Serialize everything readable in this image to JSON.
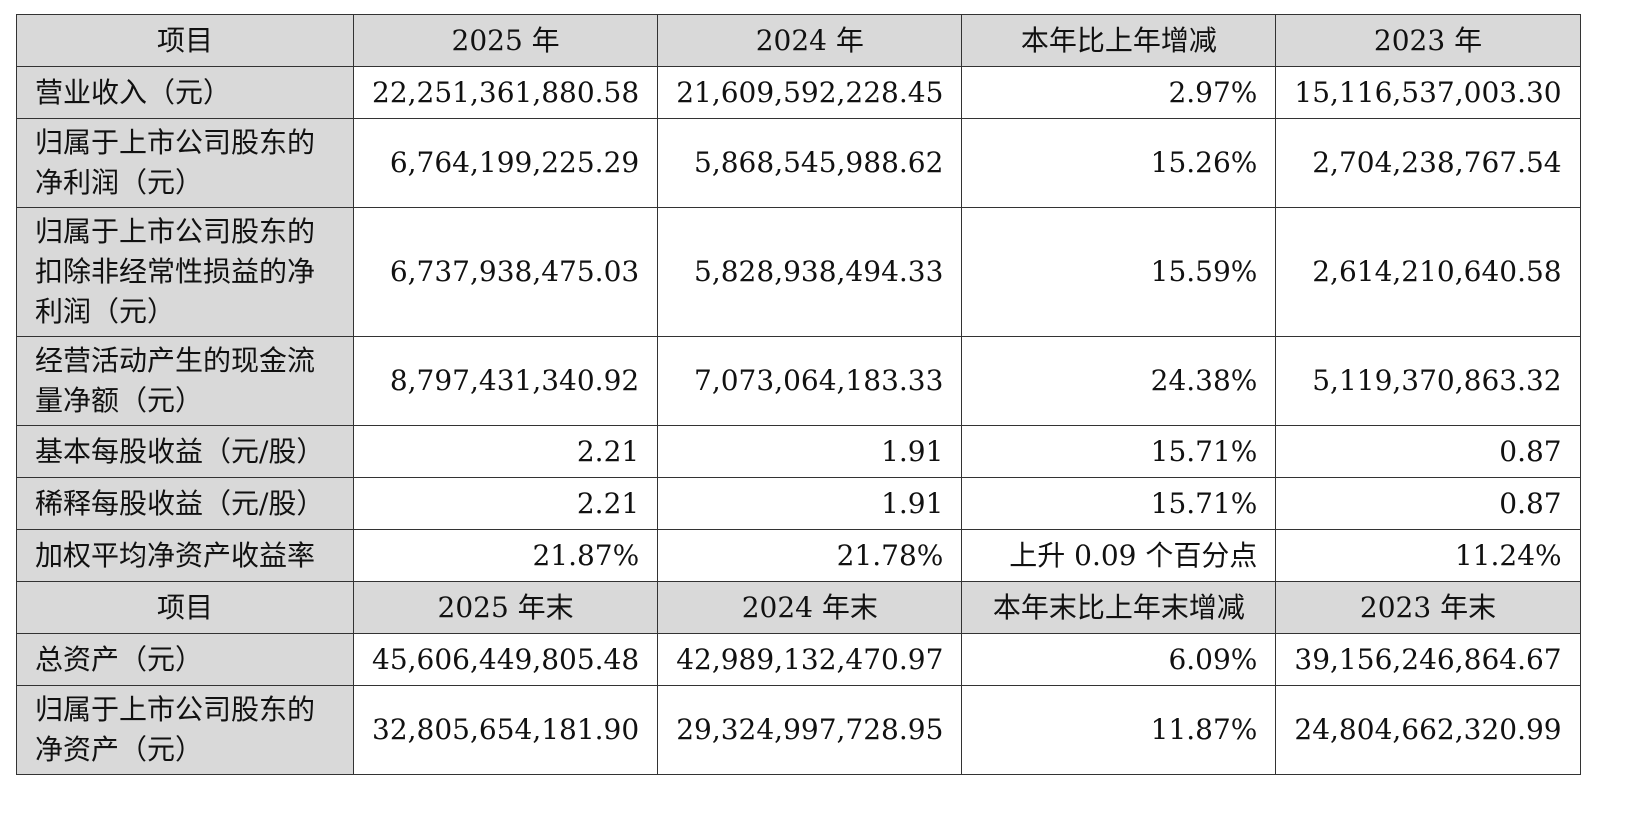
{
  "table": {
    "header1": [
      "项目",
      "2025 年",
      "2024 年",
      "本年比上年增减",
      "2023 年"
    ],
    "rows1": [
      {
        "label": [
          "营业收入（元）"
        ],
        "v2025": "22,251,361,880.58",
        "v2024": "21,609,592,228.45",
        "change": "2.97%",
        "v2023": "15,116,537,003.30"
      },
      {
        "label": [
          "归属于上市公司股东的",
          "净利润（元）"
        ],
        "v2025": "6,764,199,225.29",
        "v2024": "5,868,545,988.62",
        "change": "15.26%",
        "v2023": "2,704,238,767.54"
      },
      {
        "label": [
          "归属于上市公司股东的",
          "扣除非经常性损益的净",
          "利润（元）"
        ],
        "v2025": "6,737,938,475.03",
        "v2024": "5,828,938,494.33",
        "change": "15.59%",
        "v2023": "2,614,210,640.58"
      },
      {
        "label": [
          "经营活动产生的现金流",
          "量净额（元）"
        ],
        "v2025": "8,797,431,340.92",
        "v2024": "7,073,064,183.33",
        "change": "24.38%",
        "v2023": "5,119,370,863.32"
      },
      {
        "label": [
          "基本每股收益（元/股）"
        ],
        "v2025": "2.21",
        "v2024": "1.91",
        "change": "15.71%",
        "v2023": "0.87"
      },
      {
        "label": [
          "稀释每股收益（元/股）"
        ],
        "v2025": "2.21",
        "v2024": "1.91",
        "change": "15.71%",
        "v2023": "0.87"
      },
      {
        "label": [
          "加权平均净资产收益率"
        ],
        "v2025": "21.87%",
        "v2024": "21.78%",
        "change": "上升 0.09 个百分点",
        "v2023": "11.24%"
      }
    ],
    "header2": [
      "项目",
      "2025 年末",
      "2024 年末",
      "本年末比上年末增减",
      "2023 年末"
    ],
    "rows2": [
      {
        "label": [
          "总资产（元）"
        ],
        "v2025": "45,606,449,805.48",
        "v2024": "42,989,132,470.97",
        "change": "6.09%",
        "v2023": "39,156,246,864.67"
      },
      {
        "label": [
          "归属于上市公司股东的",
          "净资产（元）"
        ],
        "v2025": "32,805,654,181.90",
        "v2024": "29,324,997,728.95",
        "change": "11.87%",
        "v2023": "24,804,662,320.99"
      }
    ]
  }
}
